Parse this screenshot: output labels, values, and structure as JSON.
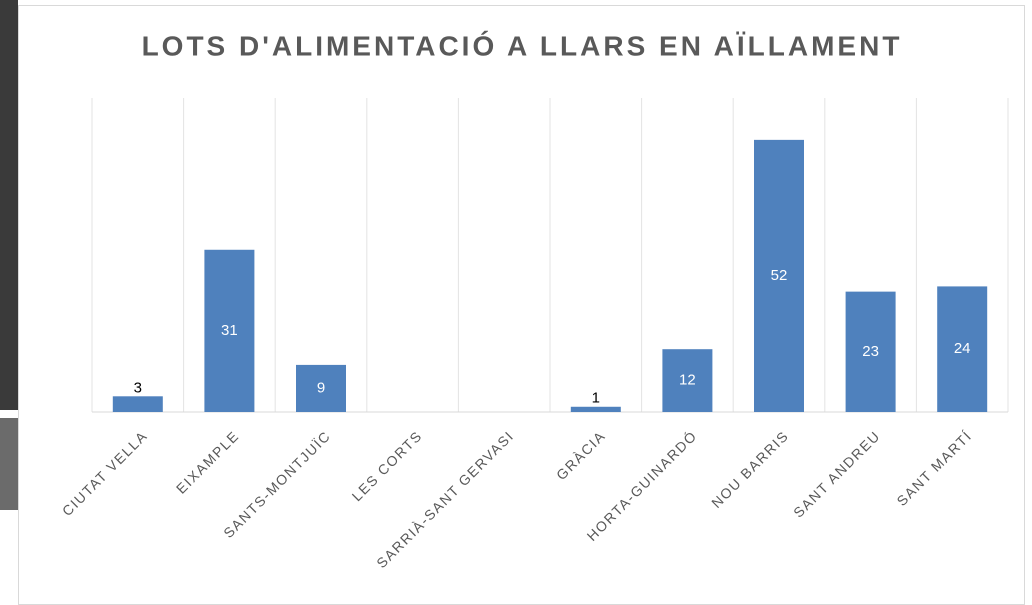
{
  "chart_data": {
    "type": "bar",
    "title": "LOTS D'ALIMENTACIÓ A LLARS EN AÏLLAMENT",
    "categories": [
      "CIUTAT VELLA",
      "EIXAMPLE",
      "SANTS-MONTJUÏC",
      "LES CORTS",
      "SARRIÀ-SANT GERVASI",
      "GRÀCIA",
      "HORTA-GUINARDÓ",
      "NOU BARRIS",
      "SANT ANDREU",
      "SANT MARTÍ"
    ],
    "values": [
      3,
      31,
      9,
      null,
      null,
      1,
      12,
      52,
      23,
      24
    ],
    "color": "#4f81bd",
    "ylim": [
      0,
      60
    ],
    "grid": true
  }
}
